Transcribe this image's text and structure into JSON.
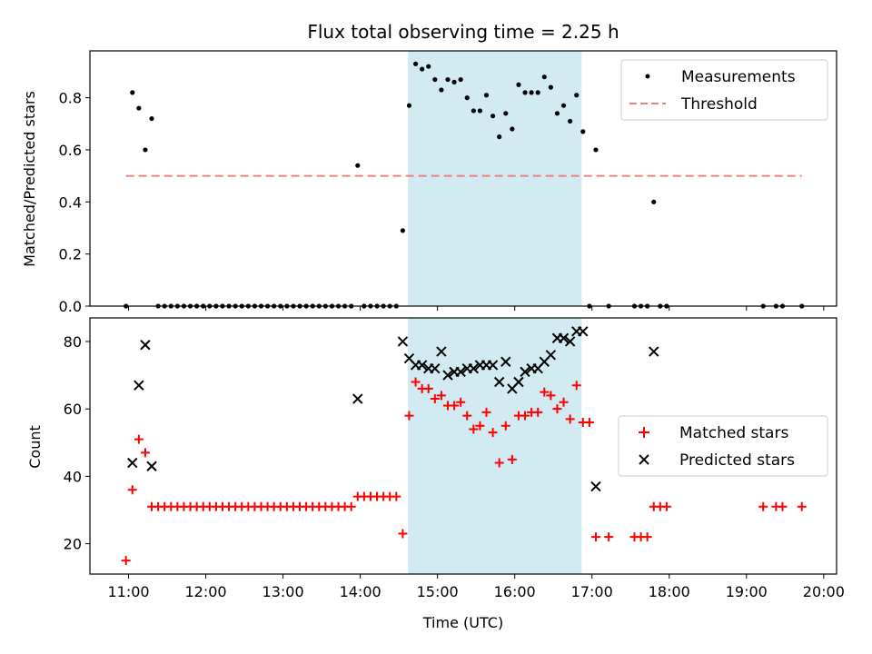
{
  "chart_data": [
    {
      "type": "scatter",
      "title": "Flux total observing time = 2.25 h",
      "xlabel": "",
      "ylabel": "Matched/Predicted stars",
      "xlim": [
        "10:30",
        "20:10"
      ],
      "ylim": [
        0,
        0.98
      ],
      "yticks": [
        "0.0",
        "0.2",
        "0.4",
        "0.6",
        "0.8"
      ],
      "highlight_span": {
        "start": "14:37",
        "end": "16:52",
        "color": "#add8e6"
      },
      "grid": false,
      "legend": "top-right",
      "series": [
        {
          "name": "Measurements",
          "marker": "dot",
          "color": "#000000",
          "x": [
            "10:58",
            "11:03",
            "11:08",
            "11:13",
            "11:18",
            "11:23",
            "11:28",
            "11:33",
            "11:38",
            "11:43",
            "11:48",
            "11:53",
            "11:58",
            "12:03",
            "12:08",
            "12:13",
            "12:18",
            "12:23",
            "12:28",
            "12:33",
            "12:38",
            "12:43",
            "12:48",
            "12:53",
            "12:58",
            "13:03",
            "13:08",
            "13:13",
            "13:18",
            "13:23",
            "13:28",
            "13:33",
            "13:38",
            "13:43",
            "13:48",
            "13:53",
            "13:58",
            "14:03",
            "14:08",
            "14:13",
            "14:18",
            "14:23",
            "14:28",
            "14:33",
            "14:38",
            "14:43",
            "14:48",
            "14:53",
            "14:58",
            "15:03",
            "15:08",
            "15:13",
            "15:18",
            "15:23",
            "15:28",
            "15:33",
            "15:38",
            "15:43",
            "15:48",
            "15:53",
            "15:58",
            "16:03",
            "16:08",
            "16:13",
            "16:18",
            "16:23",
            "16:28",
            "16:33",
            "16:38",
            "16:43",
            "16:48",
            "16:53",
            "16:58",
            "17:03",
            "17:13",
            "17:33",
            "17:38",
            "17:43",
            "17:48",
            "17:53",
            "17:58",
            "19:13",
            "19:23",
            "19:28",
            "19:43"
          ],
          "y": [
            0,
            0.82,
            0.76,
            0.6,
            0.72,
            0,
            0,
            0,
            0,
            0,
            0,
            0,
            0,
            0,
            0,
            0,
            0,
            0,
            0,
            0,
            0,
            0,
            0,
            0,
            0,
            0,
            0,
            0,
            0,
            0,
            0,
            0,
            0,
            0,
            0,
            0,
            0.54,
            0,
            0,
            0,
            0,
            0,
            0,
            0.29,
            0.77,
            0.93,
            0.91,
            0.92,
            0.87,
            0.83,
            0.87,
            0.86,
            0.87,
            0.8,
            0.75,
            0.75,
            0.81,
            0.73,
            0.65,
            0.74,
            0.68,
            0.85,
            0.82,
            0.82,
            0.82,
            0.88,
            0.84,
            0.74,
            0.77,
            0.71,
            0.81,
            0.67,
            0,
            0.6,
            0,
            0,
            0,
            0,
            0.4,
            0,
            0,
            0,
            0,
            0,
            0
          ]
        },
        {
          "name": "Threshold",
          "marker": "dashed-line",
          "color": "#f08080",
          "x": [
            "10:58",
            "19:43"
          ],
          "y": [
            0.5,
            0.5
          ]
        }
      ]
    },
    {
      "type": "scatter",
      "title": "",
      "xlabel": "Time (UTC)",
      "ylabel": "Count",
      "xlim": [
        "10:30",
        "20:10"
      ],
      "ylim": [
        11,
        87
      ],
      "xticks": [
        "11:00",
        "12:00",
        "13:00",
        "14:00",
        "15:00",
        "16:00",
        "17:00",
        "18:00",
        "19:00",
        "20:00"
      ],
      "yticks": [
        "20",
        "40",
        "60",
        "80"
      ],
      "highlight_span": {
        "start": "14:37",
        "end": "16:52",
        "color": "#add8e6"
      },
      "grid": false,
      "legend": "center-right",
      "series": [
        {
          "name": "Matched stars",
          "marker": "plus",
          "color": "#ff0000",
          "x": [
            "10:58",
            "11:03",
            "11:08",
            "11:13",
            "11:18",
            "11:23",
            "11:28",
            "11:33",
            "11:38",
            "11:43",
            "11:48",
            "11:53",
            "11:58",
            "12:03",
            "12:08",
            "12:13",
            "12:18",
            "12:23",
            "12:28",
            "12:33",
            "12:38",
            "12:43",
            "12:48",
            "12:53",
            "12:58",
            "13:03",
            "13:08",
            "13:13",
            "13:18",
            "13:23",
            "13:28",
            "13:33",
            "13:38",
            "13:43",
            "13:48",
            "13:53",
            "13:58",
            "14:03",
            "14:08",
            "14:13",
            "14:18",
            "14:23",
            "14:28",
            "14:33",
            "14:38",
            "14:43",
            "14:48",
            "14:53",
            "14:58",
            "15:03",
            "15:08",
            "15:13",
            "15:18",
            "15:23",
            "15:28",
            "15:33",
            "15:38",
            "15:43",
            "15:48",
            "15:53",
            "15:58",
            "16:03",
            "16:08",
            "16:13",
            "16:18",
            "16:23",
            "16:28",
            "16:33",
            "16:38",
            "16:43",
            "16:48",
            "16:53",
            "16:58",
            "17:03",
            "17:13",
            "17:33",
            "17:38",
            "17:43",
            "17:48",
            "17:53",
            "17:58",
            "19:13",
            "19:23",
            "19:28",
            "19:43"
          ],
          "y": [
            15,
            36,
            51,
            47,
            31,
            31,
            31,
            31,
            31,
            31,
            31,
            31,
            31,
            31,
            31,
            31,
            31,
            31,
            31,
            31,
            31,
            31,
            31,
            31,
            31,
            31,
            31,
            31,
            31,
            31,
            31,
            31,
            31,
            31,
            31,
            31,
            34,
            34,
            34,
            34,
            34,
            34,
            34,
            23,
            58,
            68,
            66,
            66,
            63,
            64,
            61,
            61,
            62,
            58,
            54,
            55,
            59,
            53,
            44,
            55,
            45,
            58,
            58,
            59,
            59,
            65,
            64,
            60,
            62,
            57,
            67,
            56,
            56,
            22,
            22,
            22,
            22,
            22,
            31,
            31,
            31,
            31,
            31,
            31,
            31
          ]
        },
        {
          "name": "Predicted stars",
          "marker": "x",
          "color": "#000000",
          "x": [
            "11:03",
            "11:08",
            "11:13",
            "11:18",
            "13:58",
            "14:33",
            "14:38",
            "14:43",
            "14:48",
            "14:53",
            "14:58",
            "15:03",
            "15:08",
            "15:13",
            "15:18",
            "15:23",
            "15:28",
            "15:33",
            "15:38",
            "15:43",
            "15:48",
            "15:53",
            "15:58",
            "16:03",
            "16:08",
            "16:13",
            "16:18",
            "16:23",
            "16:28",
            "16:33",
            "16:38",
            "16:43",
            "16:48",
            "16:53",
            "17:03",
            "17:48"
          ],
          "y": [
            44,
            67,
            79,
            43,
            63,
            80,
            75,
            73,
            73,
            72,
            72,
            77,
            70,
            71,
            71,
            72,
            72,
            73,
            73,
            73,
            68,
            74,
            66,
            68,
            71,
            72,
            72,
            74,
            76,
            81,
            81,
            80,
            83,
            83,
            37,
            77
          ]
        }
      ]
    }
  ]
}
